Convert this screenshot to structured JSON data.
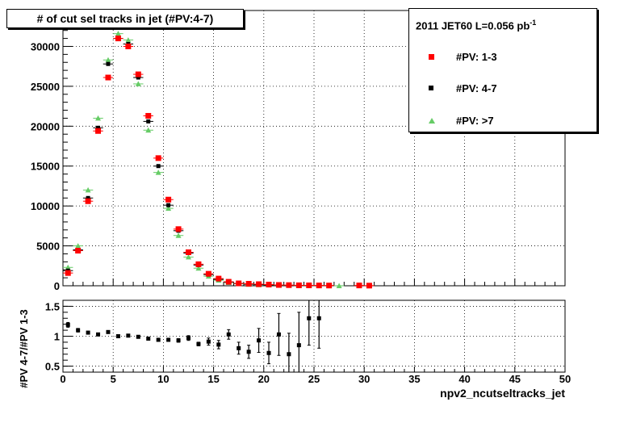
{
  "title": "# of cut sel tracks in jet (#PV:4-7)",
  "legend": {
    "header_main": "2011 JET60 L=0.056 pb",
    "header_sup": "-1",
    "entries": [
      {
        "label": "#PV: 1-3",
        "marker": "square",
        "color": "#ff0000"
      },
      {
        "label": "#PV: 4-7",
        "marker": "square-small",
        "color": "#000000"
      },
      {
        "label": "#PV: >7",
        "marker": "triangle",
        "color": "#66cc66"
      }
    ]
  },
  "top_y_ticks": [
    "0",
    "5000",
    "10000",
    "15000",
    "20000",
    "25000",
    "30000"
  ],
  "ratio_y_ticks": [
    "0.5",
    "1",
    "1.5"
  ],
  "x_ticks": [
    "0",
    "5",
    "10",
    "15",
    "20",
    "25",
    "30",
    "35",
    "40",
    "45",
    "50"
  ],
  "xlabel": "npv2_ncutseltracks_jet",
  "ratio_ylabel": "#PV 4-7/#PV 1-3",
  "chart_data": [
    {
      "type": "scatter",
      "xlim": [
        0,
        50
      ],
      "ylim": [
        0,
        34500
      ],
      "grid": true,
      "legend_position": "top-right",
      "x": [
        0.5,
        1.5,
        2.5,
        3.5,
        4.5,
        5.5,
        6.5,
        7.5,
        8.5,
        9.5,
        10.5,
        11.5,
        12.5,
        13.5,
        14.5,
        15.5,
        16.5,
        17.5,
        18.5,
        19.5,
        20.5,
        21.5,
        22.5,
        23.5,
        24.5,
        25.5,
        26.5,
        27.5,
        29.5,
        30.5
      ],
      "series": [
        {
          "name": "#PV: 1-3",
          "color": "#ff0000",
          "values": [
            1600,
            4400,
            10600,
            19400,
            26100,
            31000,
            30000,
            26500,
            21300,
            16000,
            10800,
            7100,
            4200,
            2700,
            1500,
            900,
            500,
            300,
            250,
            200,
            150,
            100,
            80,
            60,
            50,
            40,
            30,
            0,
            40,
            20
          ]
        },
        {
          "name": "#PV: 4-7",
          "color": "#000000",
          "values": [
            1900,
            4500,
            11000,
            19800,
            27800,
            31000,
            30300,
            26100,
            20600,
            15000,
            10100,
            6900,
            4100,
            2600,
            1400,
            800,
            450,
            280,
            200,
            150,
            120,
            80,
            60,
            40,
            30,
            20,
            10,
            0,
            0,
            0
          ]
        },
        {
          "name": "#PV: >7",
          "color": "#66cc66",
          "values": [
            2300,
            5000,
            12000,
            21000,
            28300,
            31600,
            30800,
            25300,
            19500,
            14200,
            9700,
            6300,
            3600,
            2200,
            1200,
            700,
            400,
            250,
            180,
            130,
            100,
            70,
            50,
            30,
            20,
            15,
            10,
            5,
            0,
            0
          ]
        }
      ]
    },
    {
      "type": "scatter",
      "xlim": [
        0,
        50
      ],
      "ylim": [
        0.4,
        1.6
      ],
      "grid": true,
      "x": [
        0.5,
        1.5,
        2.5,
        3.5,
        4.5,
        5.5,
        6.5,
        7.5,
        8.5,
        9.5,
        10.5,
        11.5,
        12.5,
        13.5,
        14.5,
        15.5,
        16.5,
        17.5,
        18.5,
        19.5,
        20.5,
        21.5,
        22.5,
        23.5,
        24.5,
        25.5
      ],
      "series": [
        {
          "name": "#PV 4-7/#PV 1-3",
          "color": "#000000",
          "values": [
            1.19,
            1.1,
            1.06,
            1.03,
            1.07,
            1.0,
            1.01,
            0.99,
            0.96,
            0.94,
            0.94,
            0.93,
            0.97,
            0.87,
            0.91,
            0.86,
            1.03,
            0.8,
            0.74,
            0.93,
            0.72,
            1.03,
            0.7,
            0.85,
            1.3,
            1.3
          ],
          "errors": [
            0.04,
            0.03,
            0.02,
            0.02,
            0.02,
            0.02,
            0.02,
            0.02,
            0.02,
            0.02,
            0.02,
            0.03,
            0.04,
            0.03,
            0.06,
            0.07,
            0.08,
            0.1,
            0.11,
            0.2,
            0.18,
            0.35,
            0.35,
            0.55,
            0.45,
            0.5
          ]
        }
      ]
    }
  ]
}
